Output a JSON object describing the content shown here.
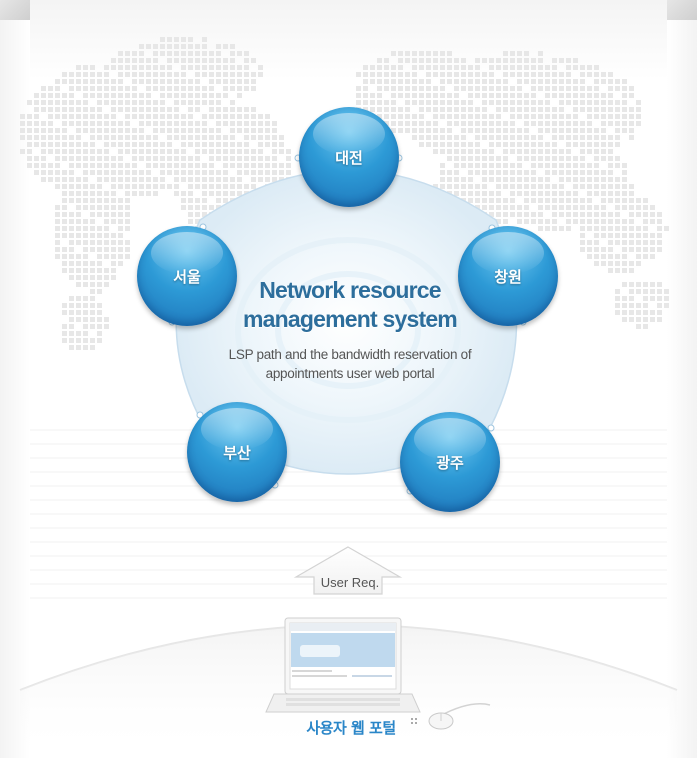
{
  "diagram": {
    "title_line1": "Network resource",
    "title_line2": "management system",
    "subtitle_line1": "LSP path and the bandwidth reservation of",
    "subtitle_line2": "appointments user web portal",
    "nodes": [
      {
        "id": "daejeon",
        "label": "대전"
      },
      {
        "id": "changwon",
        "label": "창원"
      },
      {
        "id": "gwangju",
        "label": "광주"
      },
      {
        "id": "busan",
        "label": "부산"
      },
      {
        "id": "seoul",
        "label": "서울"
      }
    ],
    "arrow_label": "User Req.",
    "portal_label": "사용자 웹 포털"
  },
  "colors": {
    "node_blue": "#2d9ad6",
    "title_blue": "#2d6e9c",
    "portal_blue": "#2a86c8",
    "map_dot": "#e7e7e7"
  }
}
